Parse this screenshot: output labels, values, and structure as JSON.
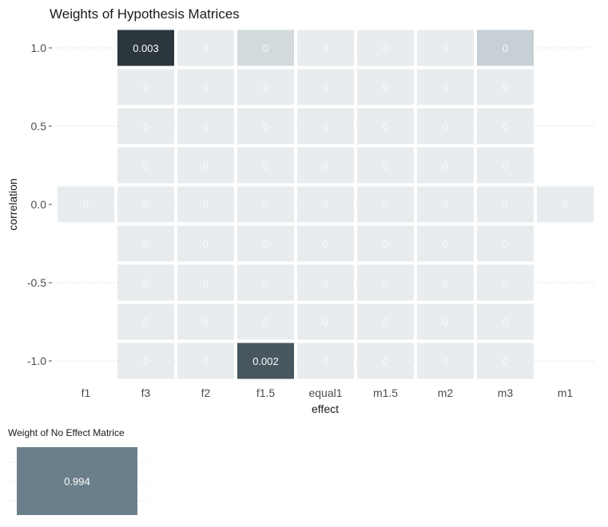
{
  "chart_data": [
    {
      "type": "heatmap",
      "title": "Weights of Hypothesis Matrices",
      "xlabel": "effect",
      "ylabel": "correlation",
      "x_categories": [
        "f1",
        "f3",
        "f2",
        "f1.5",
        "equal1",
        "m1.5",
        "m2",
        "m3",
        "m1"
      ],
      "y_values": [
        1.0,
        0.75,
        0.5,
        0.25,
        0.0,
        -0.25,
        -0.5,
        -0.75,
        -1.0
      ],
      "y_tick_labels": [
        "1.0",
        "0.5",
        "0.0",
        "-0.5",
        "-1.0"
      ],
      "y_tick_values": [
        1.0,
        0.5,
        0.0,
        -0.5,
        -1.0
      ],
      "cells": [
        {
          "x": "f3",
          "y": 1.0,
          "value": 0.003,
          "label": "0.003",
          "color": "#2b363d"
        },
        {
          "x": "f2",
          "y": 1.0,
          "value": 0,
          "label": "0",
          "color": "#e9ecee"
        },
        {
          "x": "f1.5",
          "y": 1.0,
          "value": 0,
          "label": "0",
          "color": "#d3dbde"
        },
        {
          "x": "equal1",
          "y": 1.0,
          "value": 0,
          "label": "0",
          "color": "#e9ecee"
        },
        {
          "x": "m1.5",
          "y": 1.0,
          "value": 0,
          "label": "0",
          "color": "#e9ecee"
        },
        {
          "x": "m2",
          "y": 1.0,
          "value": 0,
          "label": "0",
          "color": "#e9ecee"
        },
        {
          "x": "m3",
          "y": 1.0,
          "value": 0,
          "label": "0",
          "color": "#c7d0d5"
        },
        {
          "x": "f3",
          "y": 0.75,
          "value": 0,
          "label": "0",
          "color": "#e9ecee"
        },
        {
          "x": "f2",
          "y": 0.75,
          "value": 0,
          "label": "0",
          "color": "#e9ecee"
        },
        {
          "x": "f1.5",
          "y": 0.75,
          "value": 0,
          "label": "0",
          "color": "#e9ecee"
        },
        {
          "x": "equal1",
          "y": 0.75,
          "value": 0,
          "label": "0",
          "color": "#e9ecee"
        },
        {
          "x": "m1.5",
          "y": 0.75,
          "value": 0,
          "label": "0",
          "color": "#e9ecee"
        },
        {
          "x": "m2",
          "y": 0.75,
          "value": 0,
          "label": "0",
          "color": "#e9ecee"
        },
        {
          "x": "m3",
          "y": 0.75,
          "value": 0,
          "label": "0",
          "color": "#e9ecee"
        },
        {
          "x": "f3",
          "y": 0.5,
          "value": 0,
          "label": "0",
          "color": "#e9ecee"
        },
        {
          "x": "f2",
          "y": 0.5,
          "value": 0,
          "label": "0",
          "color": "#e9ecee"
        },
        {
          "x": "f1.5",
          "y": 0.5,
          "value": 0,
          "label": "0",
          "color": "#e9ecee"
        },
        {
          "x": "equal1",
          "y": 0.5,
          "value": 0,
          "label": "0",
          "color": "#e9ecee"
        },
        {
          "x": "m1.5",
          "y": 0.5,
          "value": 0,
          "label": "0",
          "color": "#e9ecee"
        },
        {
          "x": "m2",
          "y": 0.5,
          "value": 0,
          "label": "0",
          "color": "#e9ecee"
        },
        {
          "x": "m3",
          "y": 0.5,
          "value": 0,
          "label": "0",
          "color": "#e9ecee"
        },
        {
          "x": "f3",
          "y": 0.25,
          "value": 0,
          "label": "0",
          "color": "#e9ecee"
        },
        {
          "x": "f2",
          "y": 0.25,
          "value": 0,
          "label": "0",
          "color": "#e9ecee"
        },
        {
          "x": "f1.5",
          "y": 0.25,
          "value": 0,
          "label": "0",
          "color": "#e9ecee"
        },
        {
          "x": "equal1",
          "y": 0.25,
          "value": 0,
          "label": "0",
          "color": "#e9ecee"
        },
        {
          "x": "m1.5",
          "y": 0.25,
          "value": 0,
          "label": "0",
          "color": "#e9ecee"
        },
        {
          "x": "m2",
          "y": 0.25,
          "value": 0,
          "label": "0",
          "color": "#e9ecee"
        },
        {
          "x": "m3",
          "y": 0.25,
          "value": 0,
          "label": "0",
          "color": "#e9ecee"
        },
        {
          "x": "f1",
          "y": 0.0,
          "value": 0,
          "label": "0",
          "color": "#e9ecee"
        },
        {
          "x": "f3",
          "y": 0.0,
          "value": 0,
          "label": "0",
          "color": "#e9ecee"
        },
        {
          "x": "f2",
          "y": 0.0,
          "value": 0,
          "label": "0",
          "color": "#e9ecee"
        },
        {
          "x": "f1.5",
          "y": 0.0,
          "value": 0,
          "label": "0",
          "color": "#e9ecee"
        },
        {
          "x": "equal1",
          "y": 0.0,
          "value": 0,
          "label": "0",
          "color": "#e9ecee"
        },
        {
          "x": "m1.5",
          "y": 0.0,
          "value": 0,
          "label": "0",
          "color": "#e9ecee"
        },
        {
          "x": "m2",
          "y": 0.0,
          "value": 0,
          "label": "0",
          "color": "#e9ecee"
        },
        {
          "x": "m3",
          "y": 0.0,
          "value": 0,
          "label": "0",
          "color": "#e9ecee"
        },
        {
          "x": "m1",
          "y": 0.0,
          "value": 0,
          "label": "0",
          "color": "#e9ecee"
        },
        {
          "x": "f3",
          "y": -0.25,
          "value": 0,
          "label": "0",
          "color": "#e9ecee"
        },
        {
          "x": "f2",
          "y": -0.25,
          "value": 0,
          "label": "0",
          "color": "#e9ecee"
        },
        {
          "x": "f1.5",
          "y": -0.25,
          "value": 0,
          "label": "0",
          "color": "#e9ecee"
        },
        {
          "x": "equal1",
          "y": -0.25,
          "value": 0,
          "label": "0",
          "color": "#e9ecee"
        },
        {
          "x": "m1.5",
          "y": -0.25,
          "value": 0,
          "label": "0",
          "color": "#e9ecee"
        },
        {
          "x": "m2",
          "y": -0.25,
          "value": 0,
          "label": "0",
          "color": "#e9ecee"
        },
        {
          "x": "m3",
          "y": -0.25,
          "value": 0,
          "label": "0",
          "color": "#e9ecee"
        },
        {
          "x": "f3",
          "y": -0.5,
          "value": 0,
          "label": "0",
          "color": "#e9ecee"
        },
        {
          "x": "f2",
          "y": -0.5,
          "value": 0,
          "label": "0",
          "color": "#e9ecee"
        },
        {
          "x": "f1.5",
          "y": -0.5,
          "value": 0,
          "label": "0",
          "color": "#e9ecee"
        },
        {
          "x": "equal1",
          "y": -0.5,
          "value": 0,
          "label": "0",
          "color": "#e9ecee"
        },
        {
          "x": "m1.5",
          "y": -0.5,
          "value": 0,
          "label": "0",
          "color": "#e9ecee"
        },
        {
          "x": "m2",
          "y": -0.5,
          "value": 0,
          "label": "0",
          "color": "#e9ecee"
        },
        {
          "x": "m3",
          "y": -0.5,
          "value": 0,
          "label": "0",
          "color": "#e9ecee"
        },
        {
          "x": "f3",
          "y": -0.75,
          "value": 0,
          "label": "0",
          "color": "#e9ecee"
        },
        {
          "x": "f2",
          "y": -0.75,
          "value": 0,
          "label": "0",
          "color": "#e9ecee"
        },
        {
          "x": "f1.5",
          "y": -0.75,
          "value": 0,
          "label": "0",
          "color": "#e9ecee"
        },
        {
          "x": "equal1",
          "y": -0.75,
          "value": 0,
          "label": "0",
          "color": "#e9ecee"
        },
        {
          "x": "m1.5",
          "y": -0.75,
          "value": 0,
          "label": "0",
          "color": "#e9ecee"
        },
        {
          "x": "m2",
          "y": -0.75,
          "value": 0,
          "label": "0",
          "color": "#e9ecee"
        },
        {
          "x": "m3",
          "y": -0.75,
          "value": 0,
          "label": "0",
          "color": "#e9ecee"
        },
        {
          "x": "f3",
          "y": -1.0,
          "value": 0,
          "label": "0",
          "color": "#e9ecee"
        },
        {
          "x": "f2",
          "y": -1.0,
          "value": 0,
          "label": "0",
          "color": "#e9ecee"
        },
        {
          "x": "f1.5",
          "y": -1.0,
          "value": 0.002,
          "label": "0.002",
          "color": "#47565f"
        },
        {
          "x": "equal1",
          "y": -1.0,
          "value": 0,
          "label": "0",
          "color": "#e9ecee"
        },
        {
          "x": "m1.5",
          "y": -1.0,
          "value": 0,
          "label": "0",
          "color": "#e9ecee"
        },
        {
          "x": "m2",
          "y": -1.0,
          "value": 0,
          "label": "0",
          "color": "#e9ecee"
        },
        {
          "x": "m3",
          "y": -1.0,
          "value": 0,
          "label": "0",
          "color": "#e9ecee"
        }
      ],
      "grid": true,
      "legend": "none"
    },
    {
      "type": "heatmap",
      "title": "Weight of No Effect Matrice",
      "cells": [
        {
          "value": 0.994,
          "label": "0.994",
          "color": "#6b7f8a"
        }
      ],
      "grid": true,
      "legend": "none"
    }
  ]
}
